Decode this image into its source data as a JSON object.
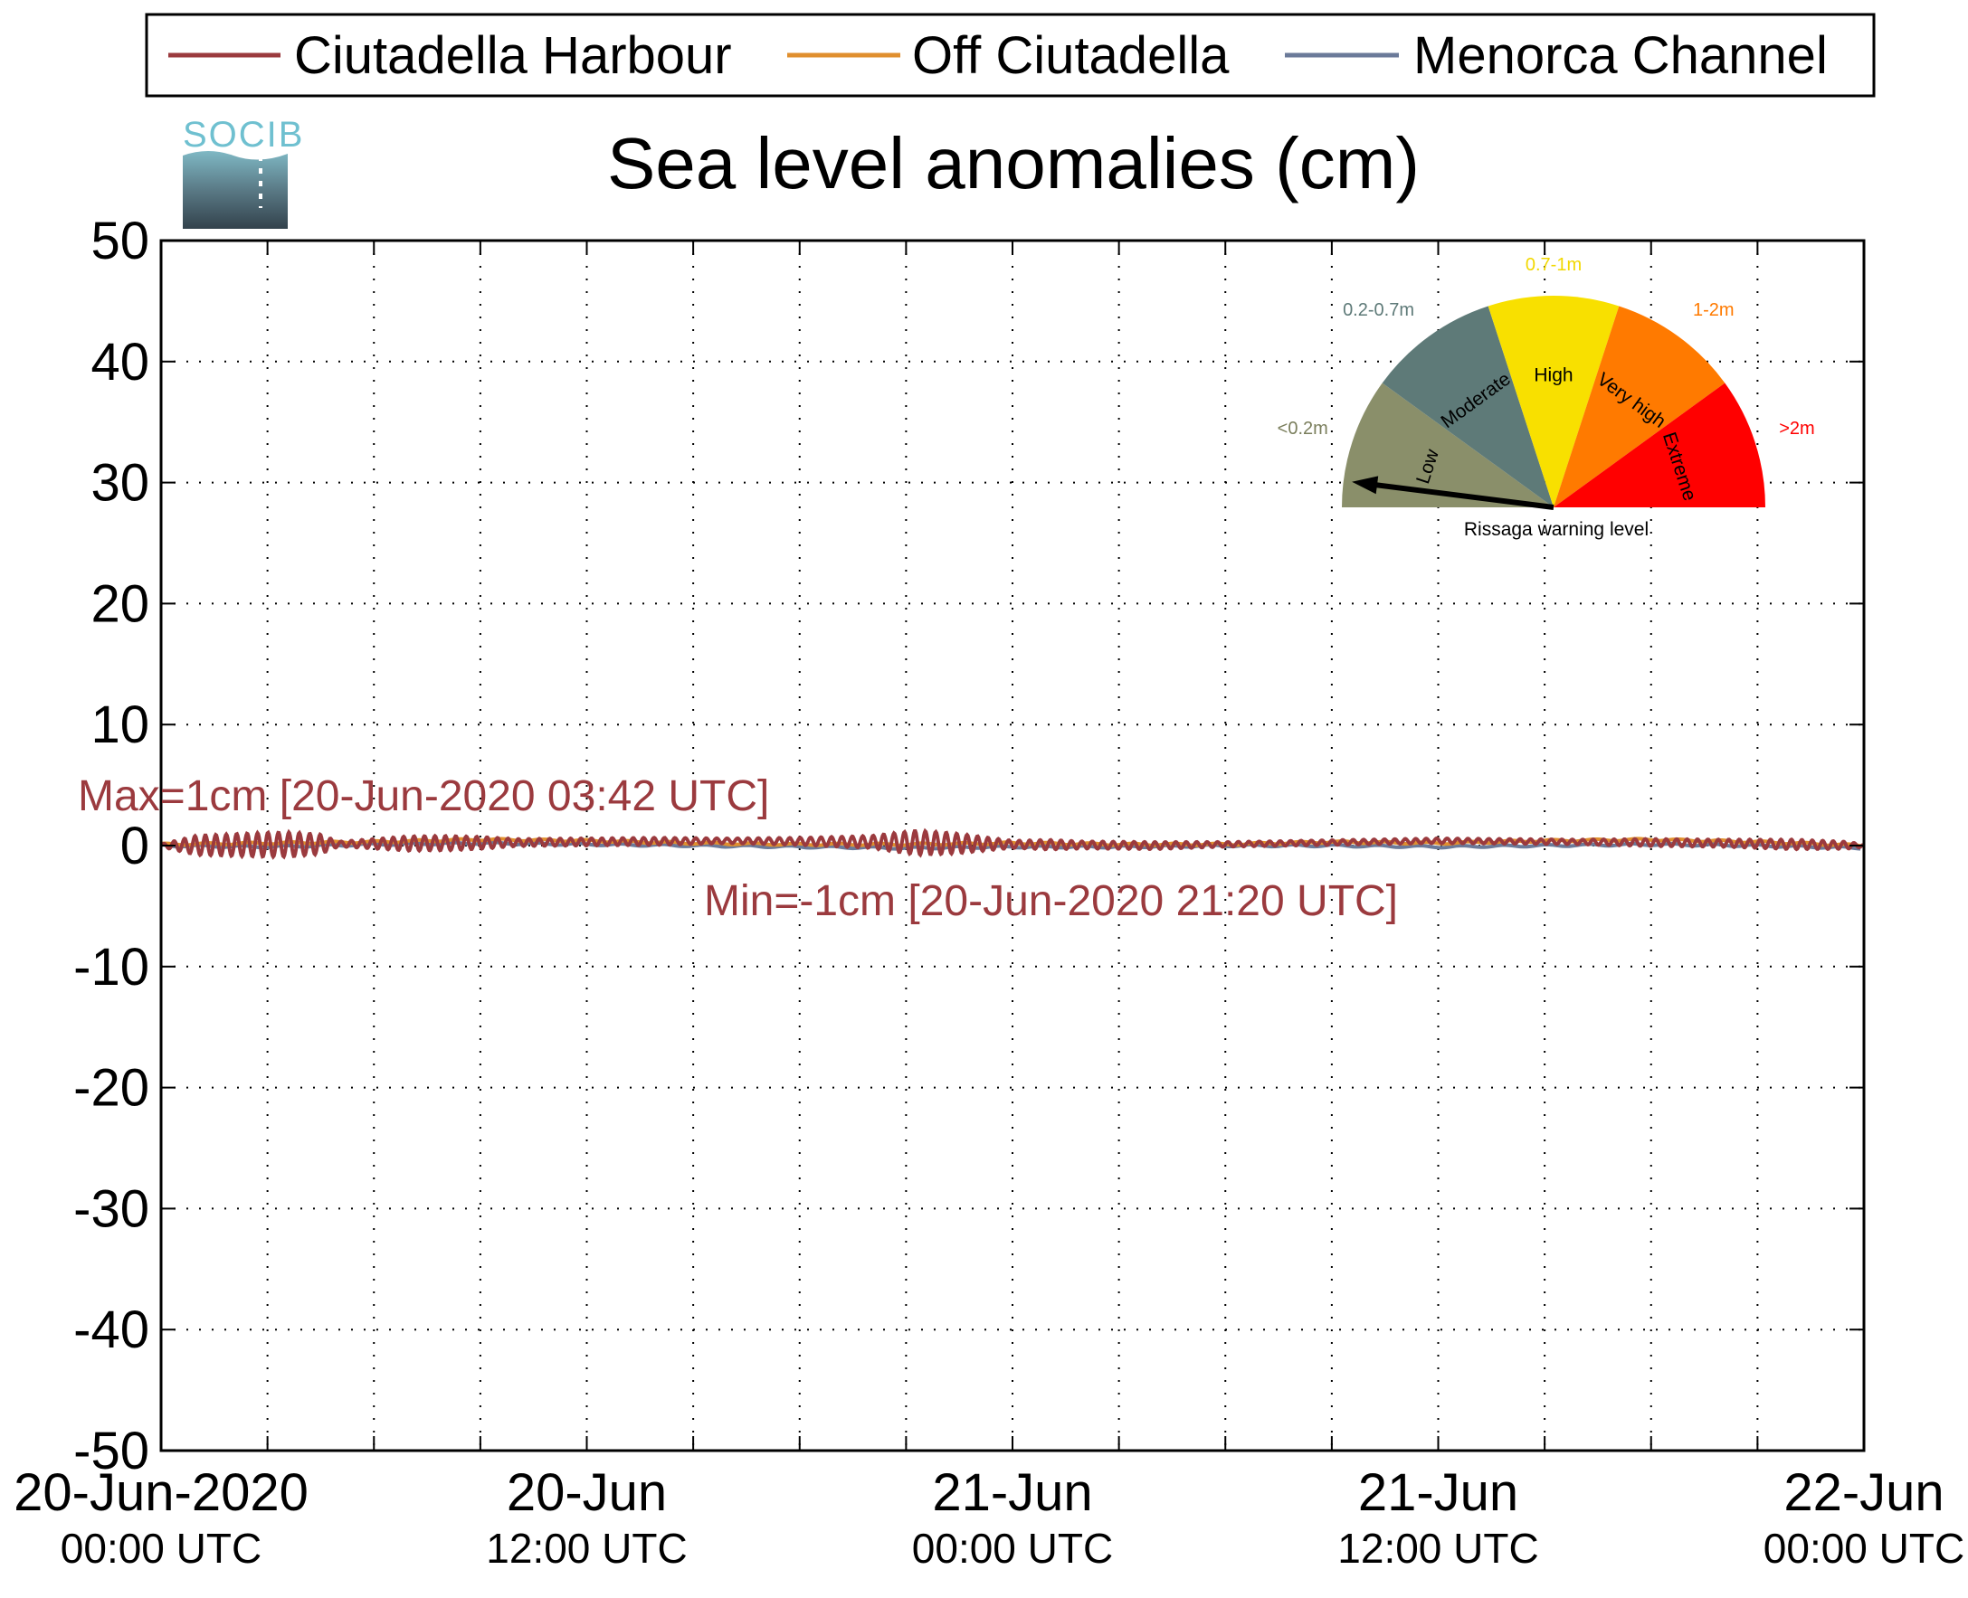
{
  "chart_data": {
    "type": "line",
    "title": "Sea level anomalies (cm)",
    "logo_text": "SOCIB",
    "xlabel": "",
    "ylabel": "",
    "ylim": [
      -50,
      50
    ],
    "yticks": [
      50,
      40,
      30,
      20,
      10,
      0,
      -10,
      -20,
      -30,
      -40,
      -50
    ],
    "xlim_hours": [
      0,
      48
    ],
    "x_start": "20-Jun-2020 00:00 UTC",
    "x_minor_tick_every_hours": 3,
    "xticks": [
      {
        "line1": "20-Jun-2020",
        "line2": "00:00 UTC"
      },
      {
        "line1": "20-Jun",
        "line2": "12:00 UTC"
      },
      {
        "line1": "21-Jun",
        "line2": "00:00 UTC"
      },
      {
        "line1": "21-Jun",
        "line2": "12:00 UTC"
      },
      {
        "line1": "22-Jun",
        "line2": "00:00 UTC"
      }
    ],
    "grid": true,
    "legend": {
      "placement": "top",
      "entries": [
        "Ciutadella Harbour",
        "Off Ciutadella",
        "Menorca Channel"
      ]
    },
    "series": [
      {
        "name": "Ciutadella Harbour",
        "color": "#9b3a3e",
        "envelope": {
          "hours": [
            0,
            1,
            2,
            3,
            3.7,
            4.5,
            5,
            6,
            7,
            8,
            9,
            10,
            12,
            14,
            16,
            18,
            20,
            21.3,
            22,
            22.5,
            24,
            25,
            26,
            28,
            30,
            32,
            34,
            36,
            38,
            40,
            42,
            44,
            46,
            47.5,
            48
          ],
          "amplitude_cm": [
            0.1,
            0.8,
            0.9,
            1.0,
            1.0,
            0.8,
            0.2,
            0.4,
            0.6,
            0.6,
            0.5,
            0.3,
            0.3,
            0.3,
            0.2,
            0.3,
            0.5,
            1.0,
            0.9,
            0.8,
            0.3,
            0.4,
            0.3,
            0.3,
            0.2,
            0.2,
            0.2,
            0.2,
            0.2,
            0.2,
            0.3,
            0.3,
            0.4,
            0.3,
            0.1
          ]
        },
        "baseline_cm": [
          0,
          0.1,
          0.2,
          0.3,
          0.4,
          0.3,
          0.1,
          0,
          0.2,
          0.4,
          0.3,
          0.2,
          0
        ]
      },
      {
        "name": "Off Ciutadella",
        "color": "#e08f2e",
        "hours": [
          0,
          3,
          6,
          9,
          12,
          15,
          18,
          21,
          24,
          27,
          30,
          33,
          36,
          39,
          42,
          45,
          48
        ],
        "values": [
          0.1,
          0.2,
          0.3,
          0.5,
          0.4,
          0.2,
          0.1,
          0.1,
          0.2,
          0.1,
          0.1,
          0.3,
          0.2,
          0.4,
          0.5,
          0.3,
          0.0
        ]
      },
      {
        "name": "Menorca Channel",
        "color": "#6b7a99",
        "hours": [
          0,
          3,
          6,
          9,
          12,
          15,
          18,
          21,
          24,
          27,
          30,
          33,
          36,
          39,
          42,
          45,
          48
        ],
        "values": [
          0.0,
          -0.1,
          0.1,
          0.2,
          0.1,
          0.0,
          -0.1,
          -0.2,
          -0.1,
          -0.1,
          0.0,
          0.0,
          -0.1,
          0.0,
          0.1,
          0.0,
          -0.2
        ]
      }
    ],
    "annotations": [
      {
        "text": "Max=1cm [20-Jun-2020 03:42 UTC]",
        "hour": 3.7,
        "value": 1
      },
      {
        "text": "Min=-1cm [20-Jun-2020 21:20 UTC]",
        "hour": 21.33,
        "value": -1
      }
    ]
  },
  "inset_gauge": {
    "title": "Rissaga warning level",
    "needle_level": "Low",
    "needle_fraction": 0.04,
    "segments": [
      {
        "label": "Low",
        "range": "<0.2m",
        "color": "#8a8f6a",
        "range_color": "#7a7e5c"
      },
      {
        "label": "Moderate",
        "range": "0.2-0.7m",
        "color": "#5e7a78",
        "range_color": "#5e7a78"
      },
      {
        "label": "High",
        "range": "0.7-1m",
        "color": "#f8e000",
        "range_color": "#f2d800"
      },
      {
        "label": "Very high",
        "range": "1-2m",
        "color": "#ff7a00",
        "range_color": "#ff7a00"
      },
      {
        "label": "Extreme",
        "range": ">2m",
        "color": "#ff0000",
        "range_color": "#ff0000"
      }
    ]
  }
}
